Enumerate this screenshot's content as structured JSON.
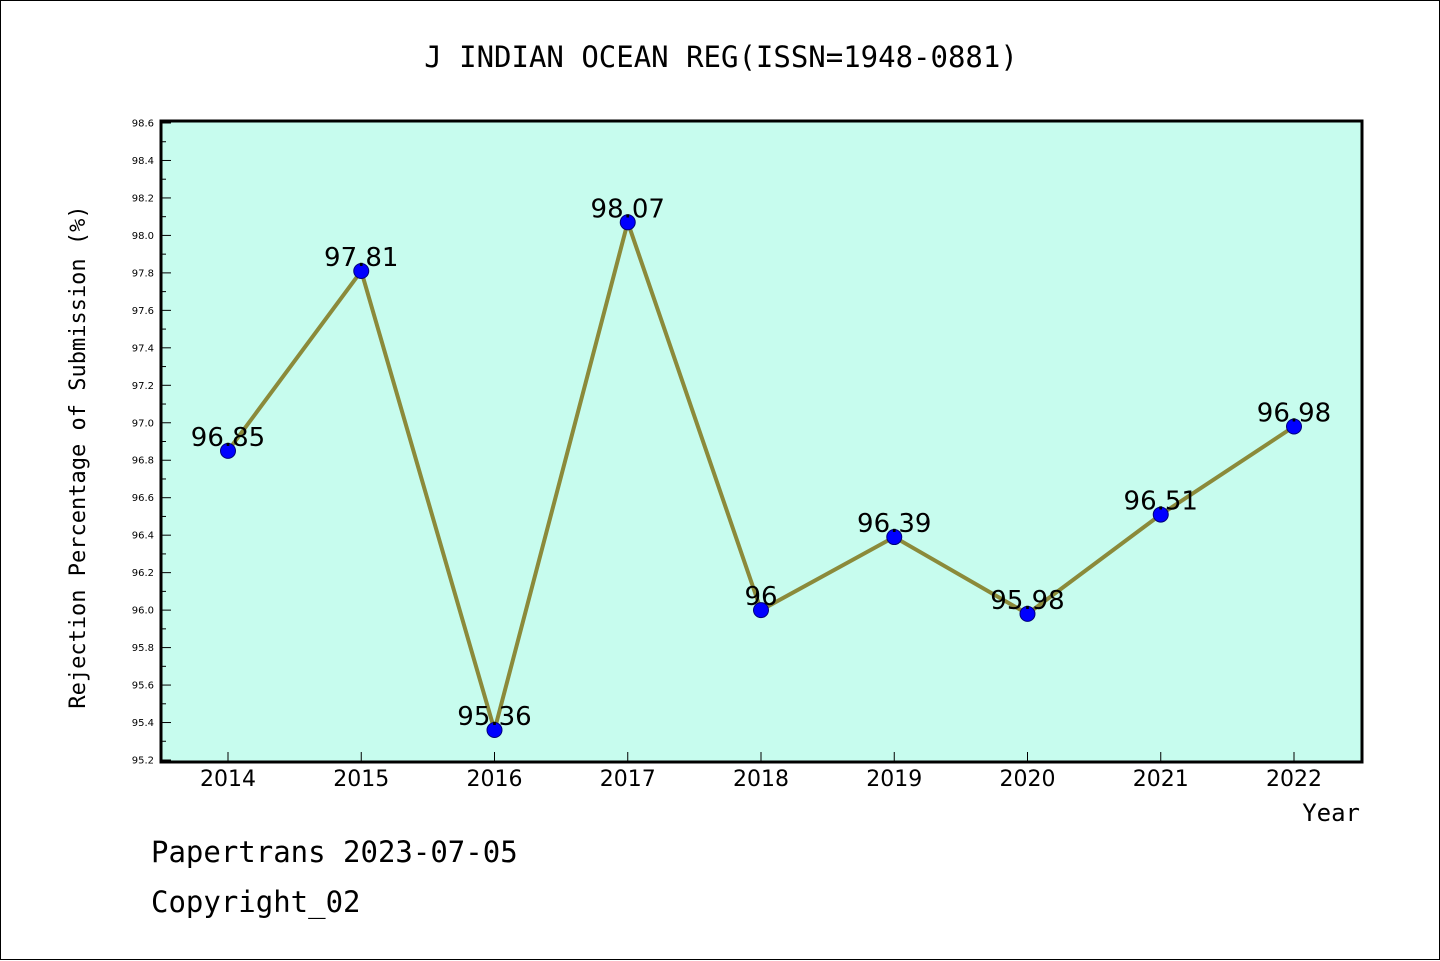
{
  "chart_data": {
    "type": "line",
    "title": "J INDIAN OCEAN REG(ISSN=1948-0881)",
    "xlabel": "Year",
    "ylabel": "Rejection Percentage of Submission (%)",
    "categories": [
      "2014",
      "2015",
      "2016",
      "2017",
      "2018",
      "2019",
      "2020",
      "2021",
      "2022"
    ],
    "values": [
      96.85,
      97.81,
      95.36,
      98.07,
      96,
      96.39,
      95.98,
      96.51,
      96.98
    ],
    "value_labels": [
      "96.85",
      "97.81",
      "95.36",
      "98.07",
      "96",
      "96.39",
      "95.98",
      "96.51",
      "96.98"
    ],
    "ylim": [
      95.2,
      98.6
    ],
    "yticks": [
      "95.2",
      "95.4",
      "95.6",
      "95.8",
      "96.0",
      "96.2",
      "96.4",
      "96.6",
      "96.8",
      "97.0",
      "97.2",
      "97.4",
      "97.6",
      "97.8",
      "98.0",
      "98.2",
      "98.4",
      "98.6"
    ],
    "grid": false,
    "colors": {
      "plot_background": "#c7fcee",
      "line": "#8b8a3a",
      "marker": "#0000ff"
    }
  },
  "footer": {
    "line1": "Papertrans 2023-07-05",
    "line2": "Copyright_02"
  }
}
